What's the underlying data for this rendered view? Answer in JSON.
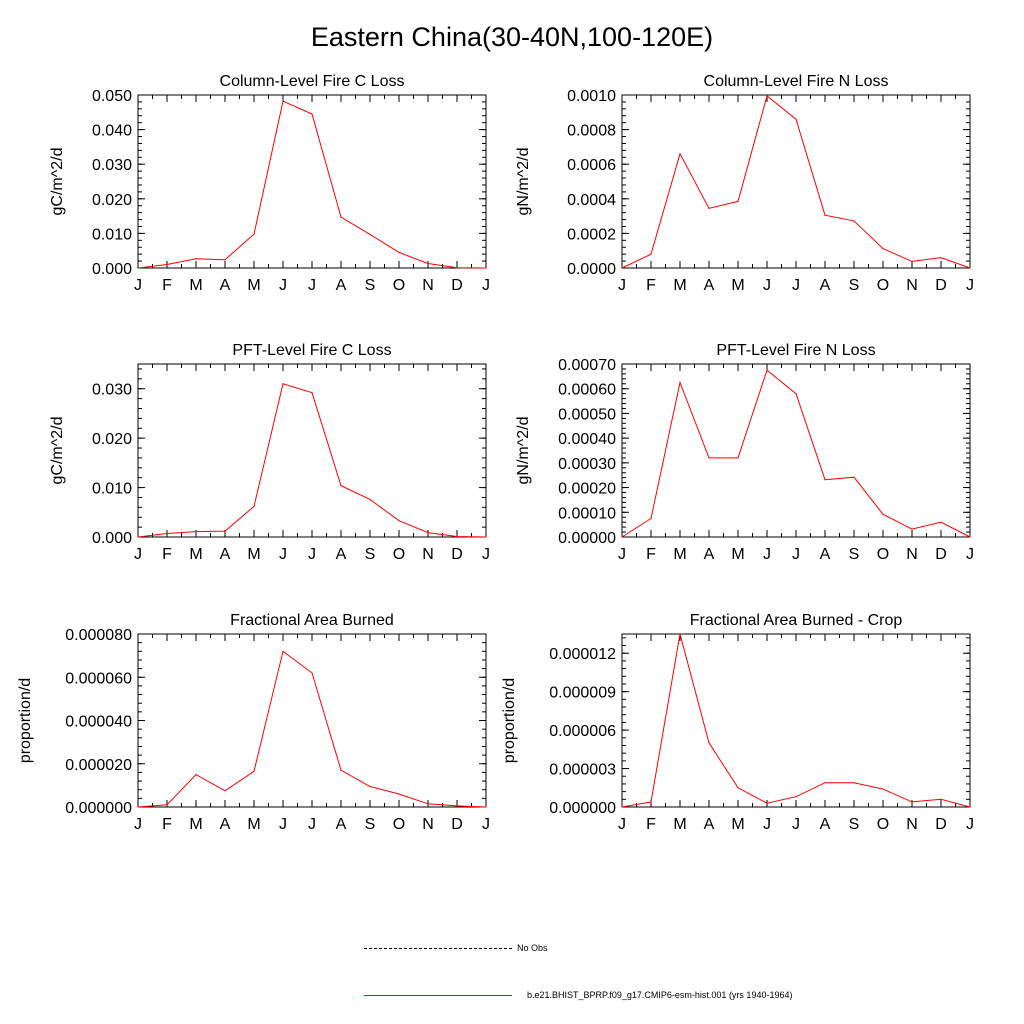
{
  "page": {
    "title": "Eastern China(30-40N,100-120E)"
  },
  "months": [
    "J",
    "F",
    "M",
    "A",
    "M",
    "J",
    "J",
    "A",
    "S",
    "O",
    "N",
    "D",
    "J"
  ],
  "chart_data": [
    {
      "type": "line",
      "title": "Column-Level Fire C Loss",
      "ylabel": "gC/m^2/d",
      "ylim": [
        0,
        0.05
      ],
      "yticks": [
        "0.000",
        "0.010",
        "0.020",
        "0.030",
        "0.040",
        "0.050"
      ],
      "series": [
        {
          "color": "#ff0000",
          "values": [
            0.0,
            0.001,
            0.0027,
            0.0024,
            0.0098,
            0.0482,
            0.0445,
            0.0147,
            0.0097,
            0.0045,
            0.0013,
            0.0001,
            0.0
          ]
        }
      ]
    },
    {
      "type": "line",
      "title": "Column-Level Fire N Loss",
      "ylabel": "gN/m^2/d",
      "ylim": [
        0,
        0.001
      ],
      "yticks": [
        "0.0000",
        "0.0002",
        "0.0004",
        "0.0006",
        "0.0008",
        "0.0010"
      ],
      "series": [
        {
          "color": "#ff0000",
          "values": [
            0.0,
            8e-05,
            0.00066,
            0.000345,
            0.000385,
            0.000995,
            0.00086,
            0.000305,
            0.000272,
            0.000112,
            3.8e-05,
            6e-05,
            0.0
          ]
        }
      ]
    },
    {
      "type": "line",
      "title": "PFT-Level Fire C Loss",
      "ylabel": "gC/m^2/d",
      "ylim": [
        0,
        0.035
      ],
      "yticks": [
        "0.000",
        "0.010",
        "0.020",
        "0.030"
      ],
      "series": [
        {
          "color": "#ff0000",
          "values": [
            0.0,
            0.0007,
            0.0011,
            0.0012,
            0.0062,
            0.031,
            0.0292,
            0.0104,
            0.0076,
            0.0033,
            0.0009,
            0.0001,
            0.0
          ]
        }
      ]
    },
    {
      "type": "line",
      "title": "PFT-Level Fire N Loss",
      "ylabel": "gN/m^2/d",
      "ylim": [
        0,
        0.0007
      ],
      "yticks": [
        "0.00000",
        "0.00010",
        "0.00020",
        "0.00030",
        "0.00040",
        "0.00050",
        "0.00060",
        "0.00070"
      ],
      "series": [
        {
          "color": "#ff0000",
          "values": [
            0.0,
            7.5e-05,
            0.000625,
            0.00032,
            0.00032,
            0.000675,
            0.00058,
            0.000232,
            0.000242,
            9.2e-05,
            3.2e-05,
            6e-05,
            0.0
          ]
        }
      ]
    },
    {
      "type": "line",
      "title": "Fractional Area Burned",
      "ylabel": "proportion/d",
      "ylim": [
        0,
        8e-05
      ],
      "yticks": [
        "0.000000",
        "0.000020",
        "0.000040",
        "0.000060",
        "0.000080"
      ],
      "series": [
        {
          "color": "#ff0000",
          "values": [
            0.0,
            1e-06,
            1.5e-05,
            7.5e-06,
            1.65e-05,
            7.2e-05,
            6.2e-05,
            1.7e-05,
            9.5e-06,
            6e-06,
            1.5e-06,
            5e-07,
            0.0
          ]
        }
      ]
    },
    {
      "type": "line",
      "title": "Fractional Area Burned - Crop",
      "ylabel": "proportion/d",
      "ylim": [
        0,
        1.35e-05
      ],
      "yticks": [
        "0.000000",
        "0.000003",
        "0.000006",
        "0.000009",
        "0.000012"
      ],
      "series": [
        {
          "color": "#ff0000",
          "values": [
            0.0,
            4e-07,
            1.35e-05,
            5e-06,
            1.5e-06,
            3e-07,
            8e-07,
            1.9e-06,
            1.9e-06,
            1.4e-06,
            4e-07,
            6e-07,
            0.0
          ]
        }
      ]
    }
  ],
  "legend": {
    "entries": [
      {
        "label": "No Obs",
        "style": "dashed",
        "color": "#000000"
      },
      {
        "label": "b.e21.BHIST_BPRP.f09_g17.CMIP6-esm-hist.001 (yrs 1940-1964)",
        "style": "solid",
        "color": "#ff0000"
      }
    ]
  }
}
